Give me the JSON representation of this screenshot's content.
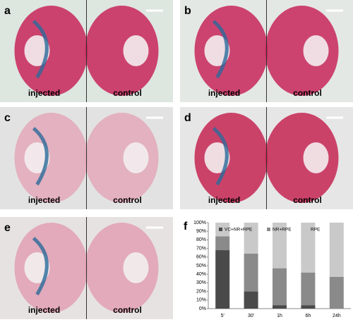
{
  "panels": [
    {
      "letter": "a",
      "left_label": "injected",
      "right_label": "control"
    },
    {
      "letter": "b",
      "left_label": "injected",
      "right_label": "control"
    },
    {
      "letter": "c",
      "left_label": "injected",
      "right_label": "control"
    },
    {
      "letter": "d",
      "left_label": "injected",
      "right_label": "control"
    },
    {
      "letter": "e",
      "left_label": "injected",
      "right_label": "control"
    }
  ],
  "chart_data": {
    "type": "bar",
    "stacked": true,
    "label": "f",
    "categories": [
      "5'",
      "30'",
      "1h",
      "6h",
      "24h"
    ],
    "series": [
      {
        "name": "VC+NR+RPE",
        "color": "#4a4a4a",
        "values": [
          68,
          20,
          4,
          4,
          0
        ]
      },
      {
        "name": "NR+RPE",
        "color": "#8a8a8a",
        "values": [
          16,
          44,
          43,
          38,
          37
        ]
      },
      {
        "name": "RPE",
        "color": "#c9c9c9",
        "values": [
          16,
          36,
          53,
          58,
          63
        ]
      }
    ],
    "ylim": [
      0,
      100
    ],
    "yticks": [
      {
        "value": 0,
        "label": "0%"
      },
      {
        "value": 10,
        "label": "10%"
      },
      {
        "value": 20,
        "label": "20%"
      },
      {
        "value": 30,
        "label": "30%"
      },
      {
        "value": 40,
        "label": "40%"
      },
      {
        "value": 50,
        "label": "50%"
      },
      {
        "value": 60,
        "label": "60%"
      },
      {
        "value": 70,
        "label": "70%"
      },
      {
        "value": 80,
        "label": "80%"
      },
      {
        "value": 90,
        "label": "90%"
      },
      {
        "value": 100,
        "label": "100%"
      }
    ]
  }
}
